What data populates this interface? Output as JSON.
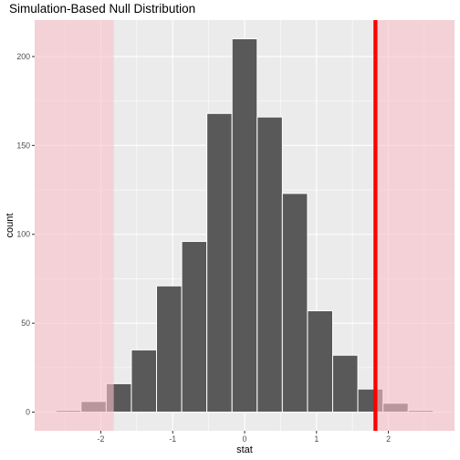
{
  "chart_data": {
    "type": "bar",
    "title": "Simulation-Based Null Distribution",
    "xlabel": "stat",
    "ylabel": "count",
    "xlim": [
      -2.92,
      2.92
    ],
    "ylim": [
      -10.5,
      220.5
    ],
    "x_ticks": [
      -2,
      -1,
      0,
      1,
      2
    ],
    "x_tick_labels": [
      "-2",
      "-1",
      "0",
      "1",
      "2"
    ],
    "y_ticks": [
      0,
      50,
      100,
      150,
      200
    ],
    "y_tick_labels": [
      "0",
      "50",
      "100",
      "150",
      "200"
    ],
    "grid": true,
    "bin_width": 0.35,
    "bins": [
      {
        "center": -2.45,
        "count": 1
      },
      {
        "center": -2.1,
        "count": 6
      },
      {
        "center": -1.75,
        "count": 16
      },
      {
        "center": -1.4,
        "count": 35
      },
      {
        "center": -1.05,
        "count": 71
      },
      {
        "center": -0.7,
        "count": 96
      },
      {
        "center": -0.35,
        "count": 168
      },
      {
        "center": 0.0,
        "count": 210
      },
      {
        "center": 0.35,
        "count": 166
      },
      {
        "center": 0.7,
        "count": 123
      },
      {
        "center": 1.05,
        "count": 57
      },
      {
        "center": 1.4,
        "count": 32
      },
      {
        "center": 1.75,
        "count": 13
      },
      {
        "center": 2.1,
        "count": 5
      },
      {
        "center": 2.45,
        "count": 1
      }
    ],
    "observed_stat": 1.82,
    "shade_direction": "two-sided",
    "shaded_regions": [
      [
        -2.92,
        -1.82
      ],
      [
        1.82,
        2.92
      ]
    ],
    "colors": {
      "panel_background": "#ebebeb",
      "grid": "#ffffff",
      "bar_fill": "#595959",
      "bar_outline": "#ffffff",
      "shade": "#f8bfc8",
      "observed_line": "#ff0000"
    }
  }
}
